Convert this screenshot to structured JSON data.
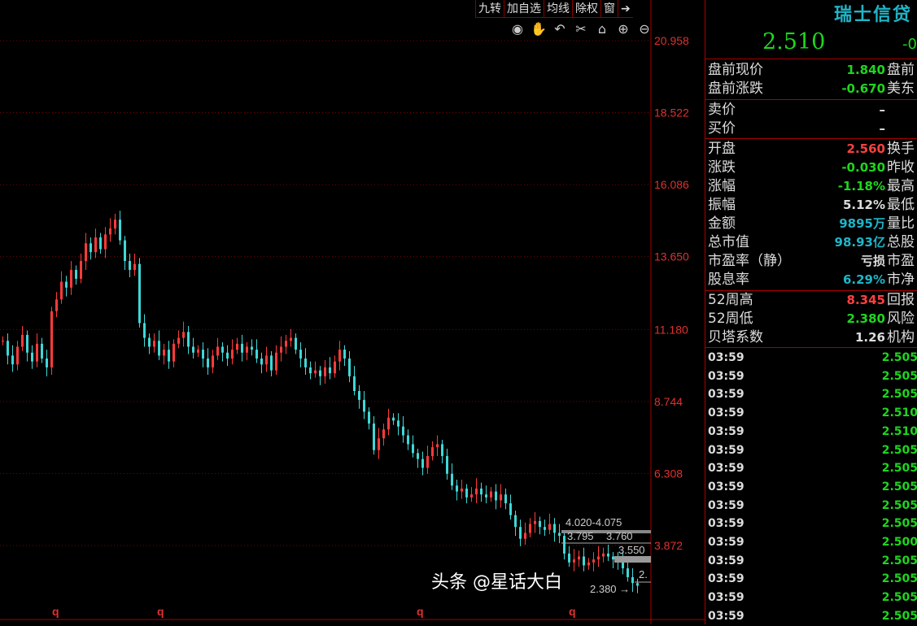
{
  "toolbar": {
    "items": [
      "九转",
      "加自选",
      "均线",
      "除权",
      "窗"
    ],
    "exit_icon": "exit-arrow-icon"
  },
  "tools": {
    "icons": [
      "eye-icon",
      "hand-icon",
      "undo-icon",
      "scissors-icon",
      "lock-icon",
      "zoom-in-icon",
      "zoom-out-icon"
    ],
    "glyphs": [
      "◉",
      "✋",
      "↶",
      "✂",
      "🔓",
      "⊕",
      "⊖"
    ]
  },
  "chart_data": {
    "type": "candlestick",
    "y_ticks": [
      "20.958",
      "18.522",
      "16.086",
      "13.650",
      "11.180",
      "8.744",
      "6.308",
      "3.872"
    ],
    "ylim": [
      2.2,
      20.958
    ],
    "grid": true,
    "up_color": "#ff3b3b",
    "down_color": "#3fd8d8",
    "closes": [
      10.8,
      10.3,
      10.0,
      10.6,
      11.0,
      10.4,
      10.1,
      10.7,
      10.2,
      9.9,
      11.8,
      12.2,
      12.8,
      12.6,
      13.2,
      12.9,
      13.5,
      14.1,
      13.8,
      14.3,
      13.9,
      14.4,
      14.6,
      14.9,
      14.2,
      13.5,
      13.2,
      13.4,
      11.4,
      10.9,
      10.6,
      10.8,
      10.3,
      10.5,
      10.1,
      10.7,
      10.9,
      11.1,
      10.6,
      10.4,
      10.5,
      10.2,
      9.9,
      10.3,
      10.6,
      10.4,
      10.2,
      10.5,
      10.7,
      10.4,
      10.6,
      10.5,
      10.2,
      10.0,
      10.3,
      9.8,
      10.4,
      10.6,
      10.8,
      10.9,
      10.5,
      10.2,
      9.9,
      9.7,
      9.8,
      9.6,
      9.9,
      9.7,
      10.1,
      10.5,
      10.2,
      9.6,
      9.1,
      8.8,
      8.4,
      8.0,
      7.1,
      7.5,
      7.8,
      8.2,
      8.1,
      7.9,
      7.6,
      7.3,
      7.0,
      6.8,
      6.5,
      6.9,
      7.2,
      7.3,
      6.9,
      6.3,
      5.9,
      5.7,
      5.8,
      5.5,
      5.6,
      5.8,
      5.6,
      5.5,
      5.7,
      5.4,
      5.6,
      5.3,
      4.9,
      4.5,
      4.1,
      4.3,
      4.6,
      4.7,
      4.5,
      4.4,
      4.6,
      4.3,
      4.2,
      3.6,
      3.3,
      3.4,
      3.5,
      3.2,
      3.3,
      3.4,
      3.5,
      3.6,
      3.5,
      3.4,
      3.3,
      3.1,
      2.8,
      2.6,
      2.51
    ],
    "annotations": [
      "4.020-4.075",
      "3.795",
      "3.760",
      "3.550",
      "2.",
      "2.380"
    ],
    "period_markers": [
      "q",
      "q",
      "q",
      "q"
    ]
  },
  "panel": {
    "title": "瑞士信贷",
    "price": "2.510",
    "change_cut": "-0",
    "premarket": [
      {
        "label": "盘前现价",
        "value": "1.840",
        "right": "盘前",
        "color": "#1ed61e"
      },
      {
        "label": "盘前涨跌",
        "value": "-0.670",
        "right": "美东",
        "color": "#1ed61e"
      }
    ],
    "quote": [
      {
        "label": "卖价",
        "value": "–",
        "color": "#ddd"
      },
      {
        "label": "买价",
        "value": "–",
        "color": "#ddd"
      }
    ],
    "stats": [
      {
        "label": "开盘",
        "value": "2.560",
        "right": "换手",
        "color": "#ff4040"
      },
      {
        "label": "涨跌",
        "value": "-0.030",
        "right": "昨收",
        "color": "#1ed61e"
      },
      {
        "label": "涨幅",
        "value": "-1.18%",
        "right": "最高",
        "color": "#1ed61e"
      },
      {
        "label": "振幅",
        "value": "5.12%",
        "right": "最低",
        "color": "#dddddd"
      },
      {
        "label": "金额",
        "value": "9895万",
        "right": "量比",
        "color": "#1fb5c8"
      },
      {
        "label": "总市值",
        "value": "98.93亿",
        "right": "总股",
        "color": "#1fb5c8"
      },
      {
        "label": "市盈率（静）",
        "value": "亏损",
        "right": "市盈",
        "color": "#dddddd"
      },
      {
        "label": "股息率",
        "value": "6.29%",
        "right": "市净",
        "color": "#1fb5c8"
      }
    ],
    "week52": [
      {
        "label": "52周高",
        "value": "8.345",
        "right": "回报",
        "color": "#ff4040"
      },
      {
        "label": "52周低",
        "value": "2.380",
        "right": "风险",
        "color": "#1ed61e"
      },
      {
        "label": "贝塔系数",
        "value": "1.26",
        "right": "机构",
        "color": "#dddddd"
      }
    ],
    "ticks": [
      {
        "time": "03:59",
        "price": "2.505"
      },
      {
        "time": "03:59",
        "price": "2.505"
      },
      {
        "time": "03:59",
        "price": "2.505"
      },
      {
        "time": "03:59",
        "price": "2.510"
      },
      {
        "time": "03:59",
        "price": "2.510"
      },
      {
        "time": "03:59",
        "price": "2.505"
      },
      {
        "time": "03:59",
        "price": "2.505"
      },
      {
        "time": "03:59",
        "price": "2.505"
      },
      {
        "time": "03:59",
        "price": "2.505"
      },
      {
        "time": "03:59",
        "price": "2.505"
      },
      {
        "time": "03:59",
        "price": "2.500"
      },
      {
        "time": "03:59",
        "price": "2.505"
      },
      {
        "time": "03:59",
        "price": "2.505"
      },
      {
        "time": "03:59",
        "price": "2.505"
      },
      {
        "time": "03:59",
        "price": "2.505"
      }
    ]
  },
  "watermark": "头条 @星话大白"
}
